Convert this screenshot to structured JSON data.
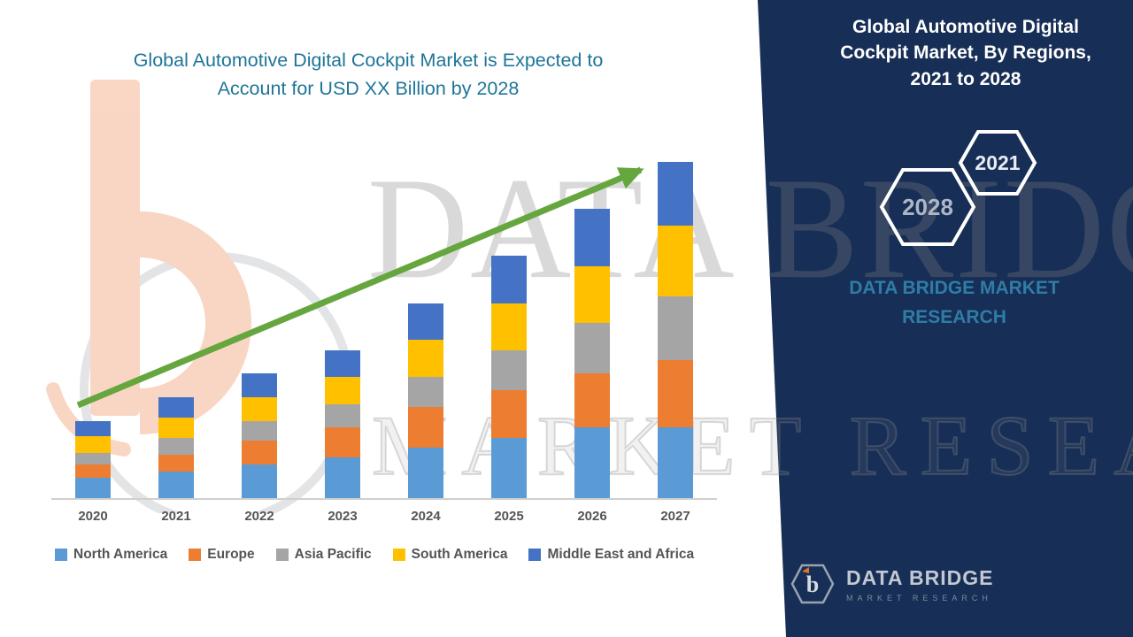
{
  "left_title": "Global Automotive Digital Cockpit Market is Expected to Account for USD XX Billion by 2028",
  "right_panel": {
    "title": "Global Automotive Digital Cockpit Market, By Regions, 2021 to 2028",
    "badge_back": "2028",
    "badge_front": "2021",
    "brand_text": "DATA BRIDGE MARKET RESEARCH",
    "footer_logo_name": "DATA BRIDGE",
    "footer_logo_subtitle": "MARKET RESEARCH",
    "panel_color": "#172e56",
    "brand_text_color": "#2f7da6"
  },
  "watermark": {
    "line1": "DATA BRIDGE",
    "line2": "MARKET RESEARCH"
  },
  "arrow_color": "#66a63f",
  "chart_data": {
    "type": "bar",
    "stacked": true,
    "title": "Global Automotive Digital Cockpit Market is Expected to Account for USD XX Billion by 2028",
    "xlabel": "",
    "ylabel": "",
    "units": "relative index (no y-axis labels shown in figure; 2027 total = 100)",
    "grid": false,
    "legend_position": "bottom",
    "categories": [
      "2020",
      "2021",
      "2022",
      "2023",
      "2024",
      "2025",
      "2026",
      "2027"
    ],
    "series": [
      {
        "name": "North America",
        "color": "#5b9bd5",
        "values": [
          6,
          8,
          10,
          12,
          15,
          18,
          21,
          21
        ]
      },
      {
        "name": "Europe",
        "color": "#ed7d31",
        "values": [
          4,
          5,
          7,
          9,
          12,
          14,
          16,
          20
        ]
      },
      {
        "name": "Asia Pacific",
        "color": "#a5a5a5",
        "values": [
          3.5,
          5,
          6,
          7,
          9,
          12,
          15,
          19
        ]
      },
      {
        "name": "South America",
        "color": "#ffc000",
        "values": [
          5,
          6,
          7,
          8,
          11,
          14,
          17,
          21
        ]
      },
      {
        "name": "Middle East and Africa",
        "color": "#4472c4",
        "values": [
          4.5,
          6,
          7,
          8,
          11,
          14,
          17,
          19
        ]
      }
    ],
    "totals": [
      23,
      30,
      37,
      44,
      58,
      72,
      86,
      100
    ],
    "trend_arrow": {
      "direction": "up",
      "from_category": "2020",
      "to_category": "2027"
    }
  }
}
